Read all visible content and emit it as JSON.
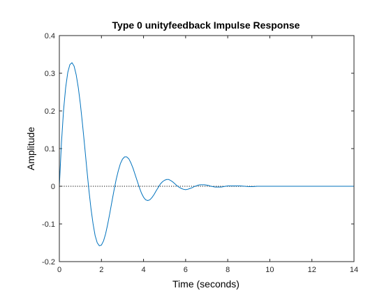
{
  "chart_data": {
    "type": "line",
    "title": "Type 0 unityfeedback Impulse Response",
    "xlabel": "Time (seconds)",
    "ylabel": "Amplitude",
    "xlim": [
      0,
      14
    ],
    "ylim": [
      -0.2,
      0.4
    ],
    "xticks": [
      0,
      2,
      4,
      6,
      8,
      10,
      12,
      14
    ],
    "xtick_labels": [
      "0",
      "2",
      "4",
      "6",
      "8",
      "10",
      "12",
      "14"
    ],
    "yticks": [
      -0.2,
      -0.1,
      0,
      0.1,
      0.2,
      0.3,
      0.4
    ],
    "ytick_labels": [
      "-0.2",
      "-0.1",
      "0",
      "0.1",
      "0.2",
      "0.3",
      "0.4"
    ],
    "grid": false,
    "reference_line": {
      "y": 0,
      "style": "dotted",
      "color": "#000000"
    },
    "series": [
      {
        "color": "#0072BD",
        "x": [
          0,
          0.1,
          0.2,
          0.3,
          0.4,
          0.5,
          0.6,
          0.7,
          0.8,
          0.9,
          1.0,
          1.1,
          1.2,
          1.3,
          1.4,
          1.5,
          1.6,
          1.7,
          1.8,
          1.9,
          2.0,
          2.1,
          2.2,
          2.3,
          2.4,
          2.5,
          2.6,
          2.7,
          2.8,
          2.9,
          3.0,
          3.1,
          3.2,
          3.3,
          3.4,
          3.5,
          3.6,
          3.7,
          3.8,
          3.9,
          4.0,
          4.1,
          4.2,
          4.3,
          4.4,
          4.5,
          4.6,
          4.7,
          4.8,
          4.9,
          5.0,
          5.1,
          5.2,
          5.3,
          5.4,
          5.5,
          5.6,
          5.7,
          5.8,
          5.9,
          6.0,
          6.1,
          6.2,
          6.3,
          6.4,
          6.5,
          6.6,
          6.7,
          6.8,
          6.9,
          7.0,
          7.1,
          7.2,
          7.3,
          7.4,
          7.5,
          7.6,
          7.7,
          7.8,
          7.9,
          8.0,
          8.2,
          8.4,
          8.6,
          8.8,
          9.0,
          9.2,
          9.4,
          9.6,
          9.8,
          10.0,
          10.2,
          10.4,
          10.6,
          10.8,
          11.0,
          11.2,
          11.4,
          11.6,
          11.8,
          12.0,
          12.2,
          12.4,
          12.6,
          12.8,
          13.0,
          13.2,
          13.4,
          13.6,
          13.8,
          14.0
        ],
        "y": [
          0,
          0.115,
          0.202,
          0.262,
          0.302,
          0.323,
          0.328,
          0.319,
          0.296,
          0.262,
          0.218,
          0.165,
          0.108,
          0.049,
          -0.008,
          -0.058,
          -0.099,
          -0.131,
          -0.15,
          -0.158,
          -0.156,
          -0.145,
          -0.126,
          -0.1,
          -0.071,
          -0.04,
          -0.01,
          0.018,
          0.041,
          0.06,
          0.072,
          0.078,
          0.078,
          0.073,
          0.062,
          0.048,
          0.031,
          0.014,
          -0.003,
          -0.018,
          -0.029,
          -0.036,
          -0.038,
          -0.036,
          -0.03,
          -0.022,
          -0.012,
          -0.003,
          0.006,
          0.012,
          0.016,
          0.018,
          0.018,
          0.015,
          0.011,
          0.006,
          0.001,
          -0.003,
          -0.006,
          -0.008,
          -0.009,
          -0.008,
          -0.006,
          -0.004,
          -0.001,
          0.001,
          0.003,
          0.004,
          0.004,
          0.004,
          0.003,
          0.002,
          0.0,
          -0.001,
          -0.002,
          -0.002,
          -0.002,
          -0.002,
          -0.001,
          0.0,
          0.001,
          0.001,
          0.001,
          0.001,
          0.0,
          -0.001,
          -0.001,
          0.0,
          0.0,
          0.0,
          0.0,
          0.0,
          0.0,
          0.0,
          0.0,
          0.0,
          0.0,
          0.0,
          0.0,
          0.0,
          0.0,
          0.0,
          0.0,
          0.0,
          0.0,
          0.0,
          0.0,
          0.0,
          0.0,
          0.0,
          0.0
        ]
      }
    ]
  }
}
